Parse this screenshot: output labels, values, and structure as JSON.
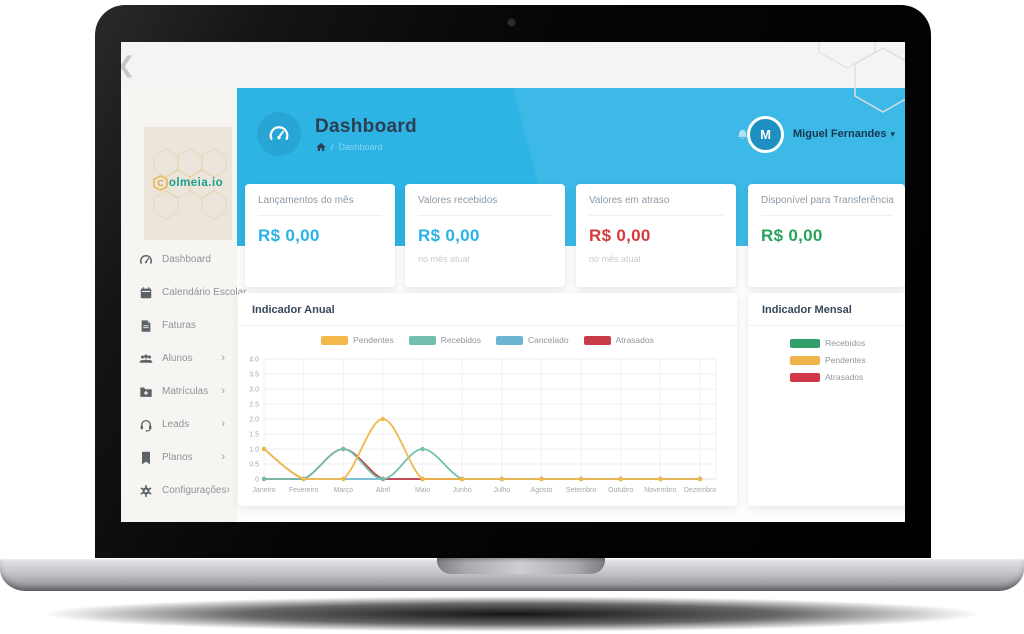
{
  "app": {
    "decor": {
      "prev_arrow": "❮"
    },
    "logo": {
      "initial": "C",
      "rest": "olmeia.io",
      "amber": "#e8b33c",
      "teal": "#1aa18e"
    },
    "sidebar": {
      "submenu_arrow": "›",
      "items": [
        {
          "id": "dashboard",
          "label": "Dashboard",
          "icon": "gauge-icon",
          "has_submenu": false
        },
        {
          "id": "calendario-escolar",
          "label": "Calendário Escolar",
          "icon": "calendar-icon",
          "has_submenu": false
        },
        {
          "id": "faturas",
          "label": "Faturas",
          "icon": "invoice-icon",
          "has_submenu": false
        },
        {
          "id": "alunos",
          "label": "Alunos",
          "icon": "students-icon",
          "has_submenu": true
        },
        {
          "id": "matriculas",
          "label": "Matrículas",
          "icon": "folder-plus-icon",
          "has_submenu": true
        },
        {
          "id": "leads",
          "label": "Leads",
          "icon": "headset-icon",
          "has_submenu": true
        },
        {
          "id": "planos",
          "label": "Planos",
          "icon": "bookmark-icon",
          "has_submenu": true
        },
        {
          "id": "configuracoes",
          "label": "Configurações",
          "icon": "gear-icon",
          "has_submenu": true
        }
      ]
    },
    "header": {
      "title": "Dashboard",
      "breadcrumb": {
        "separator": "/",
        "page": "Dashboard"
      },
      "user": {
        "name": "Miguel Fernandes",
        "initial": "M",
        "menu_arrow": "▾"
      }
    },
    "cards": [
      {
        "id": "lancamentos-do-mes",
        "title": "Lançamentos do mês",
        "value": "R$ 0,00",
        "subtitle": "",
        "value_color": "#2bb2e5"
      },
      {
        "id": "valores-recebidos",
        "title": "Valores recebidos",
        "value": "R$ 0,00",
        "subtitle": "no mês atual",
        "value_color": "#2bb2e5"
      },
      {
        "id": "valores-em-atraso",
        "title": "Valores em atraso",
        "value": "R$ 0,00",
        "subtitle": "no mês atual",
        "value_color": "#d23c3c"
      },
      {
        "id": "disponivel-para-transferencia",
        "title": "Disponível para Transferência",
        "value": "R$ 0,00",
        "subtitle": "",
        "value_color": "#28a35c"
      }
    ],
    "colors": {
      "primary": "#2db4e5",
      "sidebar_bg": "#f6f5f2"
    }
  },
  "chart_data": [
    {
      "type": "line",
      "title": "Indicador Anual",
      "categories": [
        "Janeiro",
        "Fevereiro",
        "Março",
        "Abril",
        "Maio",
        "Junho",
        "Julho",
        "Agosto",
        "Setembro",
        "Outubro",
        "Novembro",
        "Dezembro"
      ],
      "series": [
        {
          "name": "Pendentes",
          "color": "#f2b84b",
          "values": [
            1,
            0,
            0,
            2,
            0,
            0,
            0,
            0,
            0,
            0,
            0,
            0
          ]
        },
        {
          "name": "Recebidos",
          "color": "#72bfae",
          "values": [
            0,
            0,
            1,
            0,
            1,
            0,
            0,
            0,
            0,
            0,
            0,
            0
          ]
        },
        {
          "name": "Cancelado",
          "color": "#6cb6d4",
          "values": [
            1,
            0,
            0,
            0,
            0,
            0,
            0,
            0,
            0,
            0,
            0,
            0
          ]
        },
        {
          "name": "Atrasados",
          "color": "#c83b47",
          "values": [
            0,
            0,
            1,
            0,
            0,
            0,
            0,
            0,
            0,
            0,
            0,
            0
          ]
        }
      ],
      "ylim": [
        0,
        4
      ],
      "yticks": [
        "4.0",
        "3.5",
        "3.0",
        "2.5",
        "2.0",
        "1.5",
        "1.0",
        "0.5",
        "0"
      ],
      "grid": true,
      "legend_position": "top",
      "draw_order": [
        2,
        3,
        1,
        0
      ]
    },
    {
      "type": "line",
      "title": "Indicador Mensal",
      "series": [
        {
          "name": "Recebidos",
          "color": "#2f9e68"
        },
        {
          "name": "Pendentes",
          "color": "#f0b44c"
        },
        {
          "name": "Atrasados",
          "color": "#d2384a"
        }
      ],
      "legend_position": "right"
    }
  ]
}
